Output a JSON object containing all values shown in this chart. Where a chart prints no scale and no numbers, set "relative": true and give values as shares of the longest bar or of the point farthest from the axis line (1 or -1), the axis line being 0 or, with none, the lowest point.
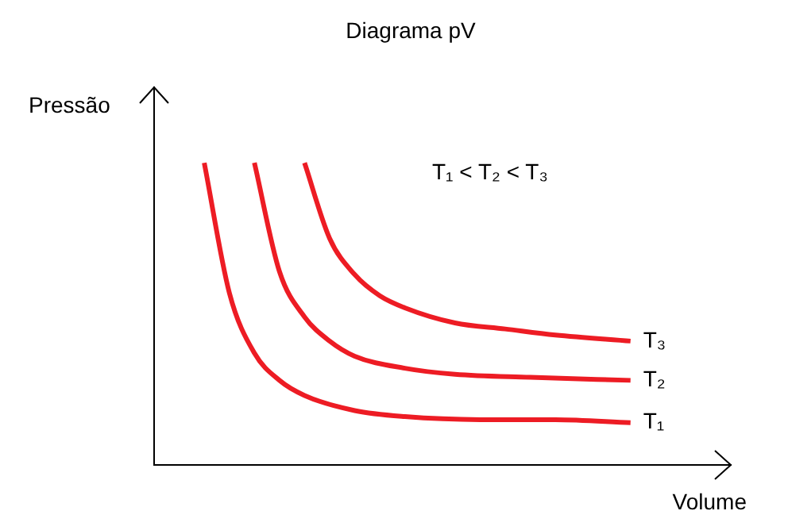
{
  "chart_data": {
    "type": "line",
    "title": "Diagrama pV",
    "xlabel": "Volume",
    "ylabel": "Pressão",
    "relative": true,
    "grid": false,
    "legend": false,
    "marker": "none",
    "line_style": "solid",
    "annotations": [
      "T₁ < T₂ < T₃"
    ],
    "categories": [
      null,
      null,
      null,
      null,
      null,
      null,
      null,
      null,
      null,
      null,
      null,
      null,
      null,
      null,
      null,
      null,
      null,
      null,
      null,
      null,
      null,
      null,
      null,
      null
    ],
    "series": [
      {
        "name": "T₁",
        "color": "#ed1c24",
        "values": [
          null,
          null,
          1.0,
          0.57,
          0.37,
          0.28,
          0.23,
          null,
          0.18,
          null,
          0.16,
          null,
          null,
          0.15,
          null,
          null,
          0.15,
          null,
          null,
          0.14,
          null,
          null,
          null,
          null
        ]
      },
      {
        "name": "T₂",
        "color": "#ed1c24",
        "values": [
          null,
          null,
          null,
          null,
          1.0,
          0.64,
          0.49,
          0.41,
          0.36,
          null,
          0.32,
          null,
          0.3,
          null,
          null,
          0.29,
          null,
          null,
          null,
          0.28,
          null,
          null,
          null,
          null
        ]
      },
      {
        "name": "T₃",
        "color": "#ed1c24",
        "values": [
          null,
          null,
          null,
          null,
          null,
          null,
          1.0,
          0.75,
          0.63,
          0.56,
          0.52,
          null,
          0.47,
          null,
          0.45,
          null,
          0.43,
          null,
          null,
          0.41,
          null,
          null,
          null,
          null
        ]
      }
    ]
  }
}
